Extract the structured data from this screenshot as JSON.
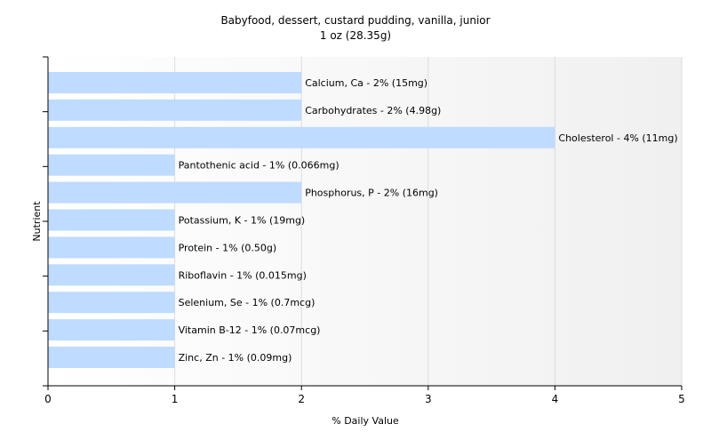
{
  "chart_data": {
    "type": "bar",
    "orientation": "horizontal",
    "title": "Babyfood, dessert, custard pudding, vanilla, junior",
    "subtitle": "1 oz (28.35g)",
    "xlabel": "% Daily Value",
    "ylabel": "Nutrient",
    "xlim": [
      0,
      5
    ],
    "xticks": [
      "0",
      "1",
      "2",
      "3",
      "4",
      "5"
    ],
    "grid": "vertical",
    "bar_color": "#bfdbff",
    "categories": [
      "Calcium, Ca",
      "Carbohydrates",
      "Cholesterol",
      "Pantothenic acid",
      "Phosphorus, P",
      "Potassium, K",
      "Protein",
      "Riboflavin",
      "Selenium, Se",
      "Vitamin B-12",
      "Zinc, Zn"
    ],
    "values": [
      2,
      2,
      4,
      1,
      2,
      1,
      1,
      1,
      1,
      1,
      1
    ],
    "data_labels": [
      "Calcium, Ca - 2% (15mg)",
      "Carbohydrates - 2% (4.98g)",
      "Cholesterol - 4% (11mg)",
      "Pantothenic acid - 1% (0.066mg)",
      "Phosphorus, P - 2% (16mg)",
      "Potassium, K - 1% (19mg)",
      "Protein - 1% (0.50g)",
      "Riboflavin - 1% (0.015mg)",
      "Selenium, Se - 1% (0.7mcg)",
      "Vitamin B-12 - 1% (0.07mcg)",
      "Zinc, Zn - 1% (0.09mg)"
    ]
  }
}
